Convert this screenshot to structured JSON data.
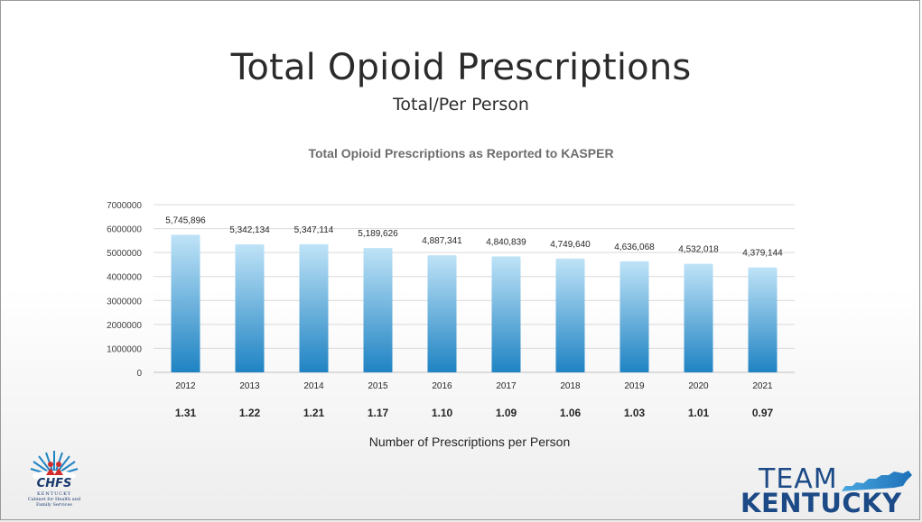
{
  "slide": {
    "title": "Total Opioid Prescriptions",
    "subtitle": "Total/Per Person",
    "caption": "Number of Prescriptions per Person"
  },
  "chart_data": {
    "type": "bar",
    "title": "Total Opioid Prescriptions as Reported to KASPER",
    "categories": [
      "2012",
      "2013",
      "2014",
      "2015",
      "2016",
      "2017",
      "2018",
      "2019",
      "2020",
      "2021"
    ],
    "values": [
      5745896,
      5342134,
      5347114,
      5189626,
      4887341,
      4840839,
      4749640,
      4636068,
      4532018,
      4379144
    ],
    "value_labels": [
      "5,745,896",
      "5,342,134",
      "5,347,114",
      "5,189,626",
      "4,887,341",
      "4,840,839",
      "4,749,640",
      "4,636,068",
      "4,532,018",
      "4,379,144"
    ],
    "per_person": [
      "1.31",
      "1.22",
      "1.21",
      "1.17",
      "1.10",
      "1.09",
      "1.06",
      "1.03",
      "1.01",
      "0.97"
    ],
    "y_ticks": [
      "0",
      "1000000",
      "2000000",
      "3000000",
      "4000000",
      "5000000",
      "6000000",
      "7000000"
    ],
    "ylim": [
      0,
      7000000
    ],
    "grid": true,
    "legend": "none",
    "bar_color_top": "#bfe3f7",
    "bar_color_bottom": "#1f83c3"
  },
  "logos": {
    "chfs_name": "CHFS",
    "chfs_state": "KENTUCKY",
    "chfs_full": "Cabinet for Health and Family Services",
    "team_word": "TEAM",
    "kentucky_word": "KENTUCKY"
  }
}
